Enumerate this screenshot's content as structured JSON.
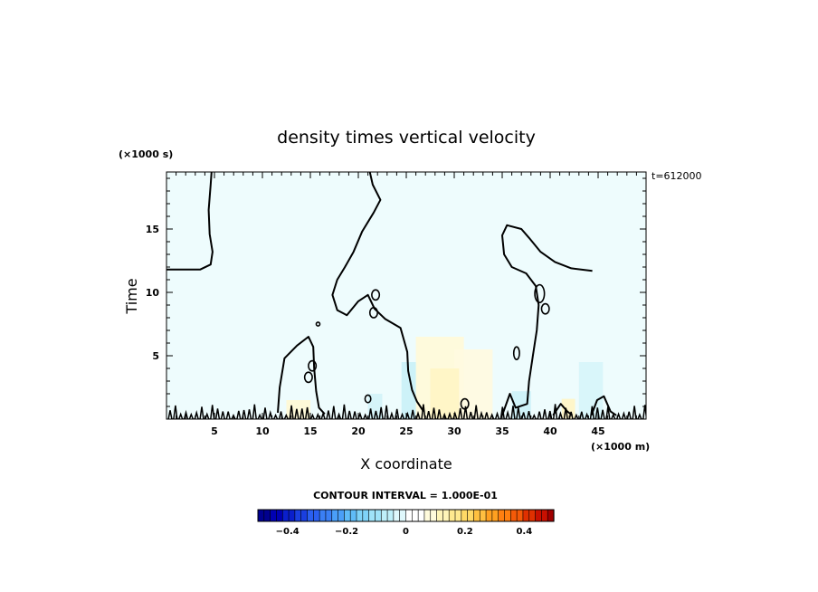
{
  "chart_data": {
    "type": "heatmap",
    "title": "density times vertical velocity",
    "xlabel": "X coordinate",
    "ylabel": "Time",
    "x_unit_label": "(×1000 m)",
    "y_unit_label": "(×1000 s)",
    "time_stamp": "t=612000",
    "xlim": [
      0,
      50
    ],
    "ylim": [
      0,
      19.5
    ],
    "x_ticks": [
      5,
      10,
      15,
      20,
      25,
      30,
      35,
      40,
      45
    ],
    "x_tick_labels": [
      "5",
      "10",
      "15",
      "20",
      "25",
      "30",
      "35",
      "40",
      "45"
    ],
    "y_ticks": [
      5,
      10,
      15
    ],
    "y_tick_labels": [
      "5",
      "10",
      "15"
    ],
    "contour_interval_text": "CONTOUR INTERVAL = 1.000E-01",
    "colorbar": {
      "range": [
        -0.5,
        0.5
      ],
      "tick_values": [
        -0.4,
        -0.2,
        0,
        0.2,
        0.4
      ],
      "tick_labels": [
        "−0.4",
        "−0.2",
        "0",
        "0.2",
        "0.4"
      ],
      "colors": [
        "#00008f",
        "#0000b3",
        "#0a1fcc",
        "#1a3fe0",
        "#2a5ff0",
        "#3a7ff5",
        "#4a9ff8",
        "#5fbcf8",
        "#7fd3f8",
        "#9fe3f8",
        "#bff0fa",
        "#dff8fc",
        "#ffffff",
        "#ffffff",
        "#fffbdc",
        "#fff5b8",
        "#ffe98f",
        "#ffd966",
        "#ffc040",
        "#ffa020",
        "#ff7f10",
        "#f55a08",
        "#e03000",
        "#c81000",
        "#a00000"
      ]
    },
    "background_field_color": "#eefcfd",
    "zero_contours": [
      [
        [
          0,
          11.8
        ],
        [
          3.5,
          11.8
        ],
        [
          4.6,
          12.2
        ],
        [
          4.8,
          13.2
        ],
        [
          4.5,
          14.6
        ],
        [
          4.4,
          16.5
        ],
        [
          4.6,
          18.5
        ],
        [
          4.7,
          19.5
        ]
      ],
      [
        [
          44.4,
          11.7
        ],
        [
          42.2,
          11.9
        ],
        [
          40.5,
          12.4
        ],
        [
          39,
          13.2
        ],
        [
          37.8,
          14.3
        ],
        [
          37,
          15
        ],
        [
          35.5,
          15.3
        ],
        [
          35,
          14.5
        ],
        [
          35.2,
          13
        ],
        [
          36,
          12
        ],
        [
          37.5,
          11.5
        ],
        [
          38.5,
          10.5
        ],
        [
          38.8,
          9
        ],
        [
          38.6,
          7
        ],
        [
          38.2,
          5
        ],
        [
          37.8,
          3
        ],
        [
          37.6,
          1.2
        ],
        [
          36.4,
          0.9
        ],
        [
          35.8,
          2
        ],
        [
          35,
          0.3
        ]
      ],
      [
        [
          21.2,
          19.5
        ],
        [
          21.5,
          18.5
        ],
        [
          22.3,
          17.3
        ],
        [
          21.6,
          16.3
        ],
        [
          20.4,
          14.8
        ],
        [
          19.5,
          13.2
        ],
        [
          18.6,
          12
        ],
        [
          17.8,
          11
        ],
        [
          17.3,
          9.8
        ],
        [
          17.8,
          8.6
        ],
        [
          18.8,
          8.2
        ],
        [
          20,
          9.3
        ],
        [
          21,
          9.8
        ],
        [
          21.7,
          8.7
        ],
        [
          22.8,
          7.9
        ],
        [
          24.4,
          7.2
        ],
        [
          25.1,
          5.3
        ],
        [
          25.2,
          3.8
        ],
        [
          25.6,
          2.3
        ],
        [
          26.1,
          1.4
        ],
        [
          26.8,
          0.6
        ]
      ],
      [
        [
          11.6,
          0.5
        ],
        [
          11.8,
          2.5
        ],
        [
          12.3,
          4.8
        ],
        [
          13.6,
          5.8
        ],
        [
          14.8,
          6.5
        ],
        [
          15.3,
          5.7
        ],
        [
          15.4,
          4
        ],
        [
          15.6,
          2.2
        ],
        [
          15.9,
          0.9
        ],
        [
          16.5,
          0.4
        ]
      ],
      [
        [
          44.3,
          0.3
        ],
        [
          44.9,
          1.5
        ],
        [
          45.6,
          1.8
        ],
        [
          46.3,
          0.6
        ],
        [
          46.9,
          0.3
        ]
      ],
      [
        [
          40.3,
          0.3
        ],
        [
          41.1,
          1.2
        ],
        [
          41.8,
          0.6
        ],
        [
          42.3,
          0.3
        ]
      ]
    ],
    "small_contours": [
      [
        38.9,
        9.9,
        0.5,
        0.7
      ],
      [
        21.8,
        9.8,
        0.4,
        0.4
      ],
      [
        21.6,
        8.4,
        0.4,
        0.4
      ],
      [
        39.5,
        8.7,
        0.4,
        0.4
      ],
      [
        36.5,
        5.2,
        0.3,
        0.5
      ],
      [
        15.2,
        4.2,
        0.4,
        0.4
      ],
      [
        14.8,
        3.3,
        0.4,
        0.4
      ],
      [
        31.1,
        1.2,
        0.4,
        0.4
      ],
      [
        21.0,
        1.6,
        0.3,
        0.3
      ],
      [
        15.8,
        7.5,
        0.15,
        0.15
      ]
    ],
    "positive_regions": [
      [
        26,
        0,
        5,
        6.5,
        "#fff9d8"
      ],
      [
        30,
        0,
        4,
        5.5,
        "#fffae0"
      ],
      [
        27.5,
        0,
        3,
        4,
        "#fff5c4"
      ],
      [
        41.2,
        0,
        1.4,
        1.6,
        "#fff5c4"
      ],
      [
        12.5,
        0,
        2.5,
        1.5,
        "#fff8d4"
      ]
    ],
    "negative_regions": [
      [
        24.5,
        0,
        1.5,
        4.5,
        "#c9f1f7"
      ],
      [
        43,
        0,
        2.5,
        4.5,
        "#d6f5f9"
      ],
      [
        36,
        0,
        2,
        2.2,
        "#ccf2f8"
      ],
      [
        21,
        0,
        1.5,
        2,
        "#d2f3f8"
      ]
    ]
  }
}
